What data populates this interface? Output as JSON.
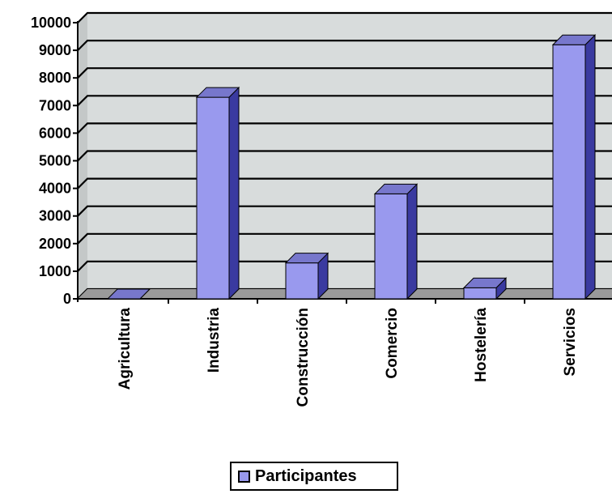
{
  "chart_data": {
    "type": "bar",
    "title": "",
    "xlabel": "",
    "ylabel": "",
    "categories": [
      "Agricultura",
      "Industria",
      "Construcción",
      "Comercio",
      "Hostelería",
      "Servicios"
    ],
    "series": [
      {
        "name": "Participantes",
        "values": [
          0,
          7300,
          1300,
          3800,
          400,
          9200
        ]
      }
    ],
    "ylim": [
      0,
      10000
    ],
    "yticks": [
      0,
      1000,
      2000,
      3000,
      4000,
      5000,
      6000,
      7000,
      8000,
      9000,
      10000
    ],
    "ytick_labels": [
      "0",
      "1000",
      "2000",
      "3000",
      "4000",
      "5000",
      "6000",
      "7000",
      "8000",
      "9000",
      "10000"
    ],
    "grid": true,
    "style": "3d",
    "legend_position": "bottom",
    "colors": {
      "bar_front": "#9999ee",
      "bar_side": "#3a3aa0",
      "bar_top": "#7777cc",
      "wall": "#d8dcdc",
      "floor": "#9a9a9a",
      "gridline": "#000000"
    }
  },
  "legend": {
    "label": "Participantes"
  }
}
